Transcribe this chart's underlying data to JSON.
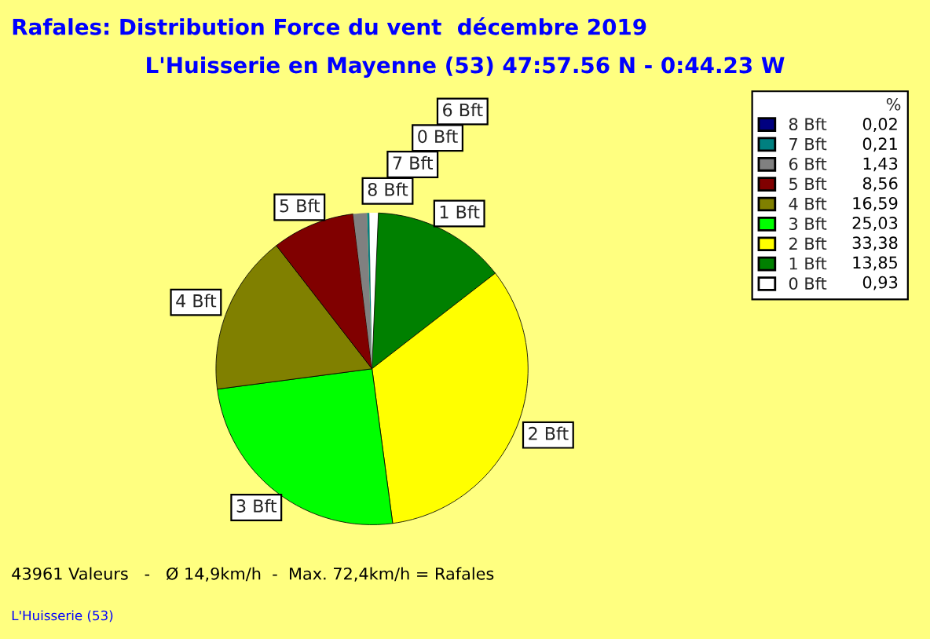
{
  "chart_data": {
    "type": "pie",
    "title": "Rafales: Distribution Force du vent  décembre 2019",
    "subtitle": "L'Huisserie en Mayenne (53) 47:57.56 N - 0:44.23 W",
    "legend_title": "%",
    "legend": "top right",
    "categories": [
      "0 Bft",
      "1 Bft",
      "2 Bft",
      "3 Bft",
      "4 Bft",
      "5 Bft",
      "6 Bft",
      "7 Bft",
      "8 Bft"
    ],
    "values": [
      0.93,
      13.85,
      33.38,
      25.03,
      16.59,
      8.56,
      1.43,
      0.21,
      0.02
    ],
    "value_labels": [
      "0,93",
      "13,85",
      "33,38",
      "25,03",
      "16,59",
      "8,56",
      "1,43",
      "0,21",
      "0,02"
    ],
    "colors": [
      "#ffffff",
      "#008000",
      "#ffff00",
      "#00ff00",
      "#808000",
      "#800000",
      "#808080",
      "#008080",
      "#000080"
    ],
    "annotations": [
      "43961 Valeurs   -   Ø 14,9km/h  -  Max. 72,4km/h = Rafales",
      "L'Huisserie (53)"
    ]
  }
}
